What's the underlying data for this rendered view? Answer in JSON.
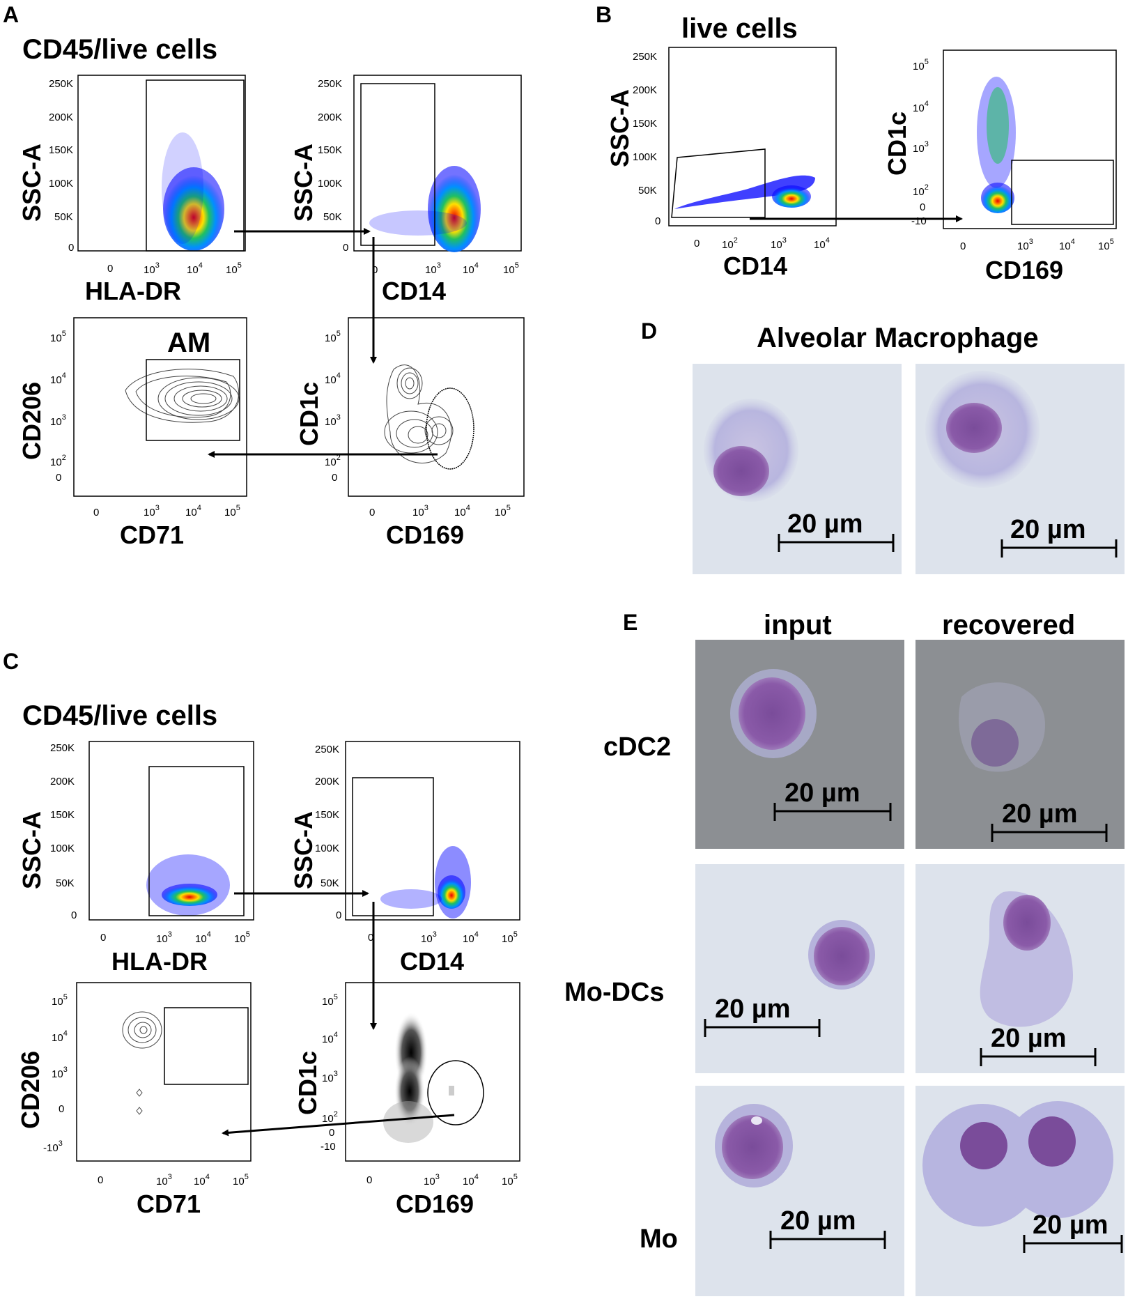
{
  "panels": {
    "A": {
      "letter": "A",
      "title": "CD45/live cells",
      "plot1": {
        "x_label": "HLA-DR",
        "y_label": "SSC-A"
      },
      "plot2": {
        "x_label": "CD14",
        "y_label": "SSC-A"
      },
      "plot3": {
        "x_label": "CD71",
        "y_label": "CD206",
        "gate_label": "AM"
      },
      "plot4": {
        "x_label": "CD169",
        "y_label": "CD1c"
      }
    },
    "B": {
      "letter": "B",
      "title": "live cells",
      "plot1": {
        "x_label": "CD14",
        "y_label": "SSC-A"
      },
      "plot2": {
        "x_label": "CD169",
        "y_label": "CD1c"
      }
    },
    "C": {
      "letter": "C",
      "title": "CD45/live cells",
      "plot1": {
        "x_label": "HLA-DR",
        "y_label": "SSC-A"
      },
      "plot2": {
        "x_label": "CD14",
        "y_label": "SSC-A"
      },
      "plot3": {
        "x_label": "CD71",
        "y_label": "CD206"
      },
      "plot4": {
        "x_label": "CD169",
        "y_label": "CD1c"
      }
    },
    "D": {
      "letter": "D",
      "title": "Alveolar Macrophage",
      "scale_bar": "20 µm"
    },
    "E": {
      "letter": "E",
      "col_input": "input",
      "col_recovered": "recovered",
      "rows": [
        "cDC2",
        "Mo-DCs",
        "Mo"
      ],
      "scale_bar": "20 µm"
    }
  },
  "ticks": {
    "ssc": [
      "250K",
      "200K",
      "150K",
      "100K",
      "50K",
      "0"
    ],
    "zero": "0",
    "ten": "10",
    "neg_ten": "-10",
    "exp2": "2",
    "exp3": "3",
    "exp4": "4",
    "exp5": "5"
  },
  "colors": {
    "density_high": "#e60000",
    "density_mid": "#ffe000",
    "density_low_mid": "#20c060",
    "density_low": "#0000ff",
    "cell_stain": "#8a5aa8",
    "bg_light": "#dde3ec",
    "bg_dark": "#8c8f93"
  }
}
